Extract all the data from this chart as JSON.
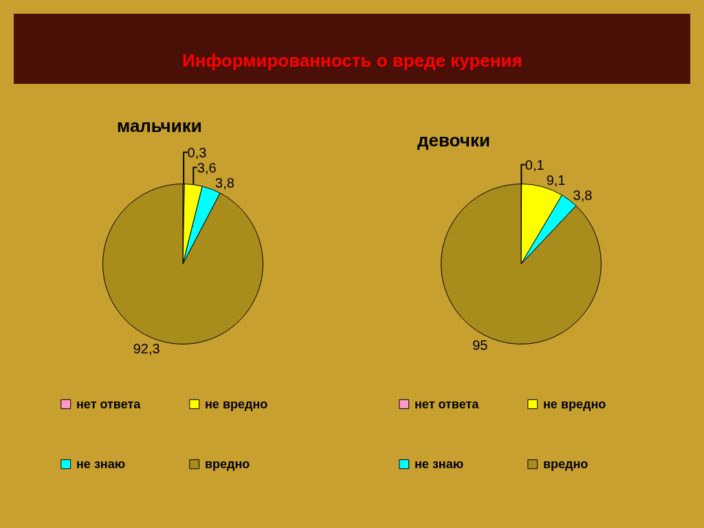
{
  "chart_data": [
    {
      "type": "pie",
      "title": "мальчики",
      "annotations": [
        "Информированность о вреде курения"
      ],
      "categories": [
        "нет ответа",
        "не вредно",
        "не знаю",
        "вредно"
      ],
      "values": [
        0.3,
        3.6,
        3.8,
        92.3
      ],
      "colors": [
        "#ff99cc",
        "#ffff00",
        "#00ffff",
        "#a88c1c"
      ],
      "value_labels": [
        "0,3",
        "3,6",
        "3,8",
        "92,3"
      ],
      "legend": "bottom"
    },
    {
      "type": "pie",
      "title": "девочки",
      "categories": [
        "нет ответа",
        "не вредно",
        "не знаю",
        "вредно"
      ],
      "values": [
        0.1,
        9.1,
        3.8,
        95
      ],
      "colors": [
        "#ff99cc",
        "#ffff00",
        "#00ffff",
        "#a88c1c"
      ],
      "value_labels": [
        "0,1",
        "9,1",
        "3,8",
        "95"
      ],
      "legend": "bottom"
    }
  ]
}
